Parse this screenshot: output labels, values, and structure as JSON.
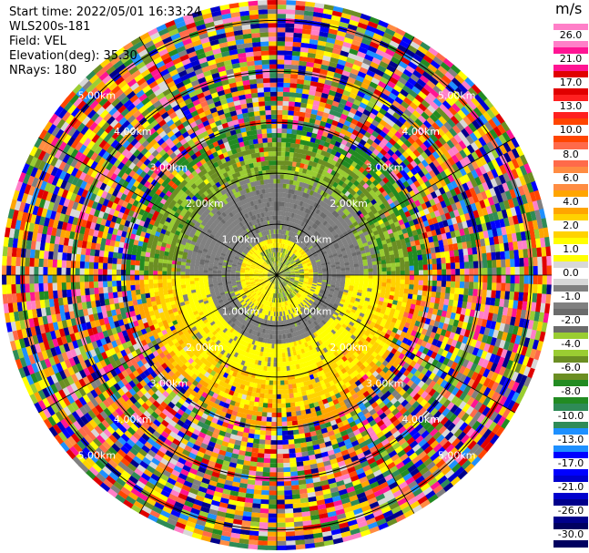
{
  "header": {
    "start_time": "Start time: 2022/05/01 16:33:24",
    "instrument": "WLS200s-181",
    "field": "Field: VEL",
    "elevation": "Elevation(deg): 35.30",
    "nrays": "NRays: 180"
  },
  "colorbar": {
    "title": "m/s",
    "ticks": [
      "26.0",
      "21.0",
      "17.0",
      "13.0",
      "10.0",
      "8.0",
      "6.0",
      "4.0",
      "2.0",
      "1.0",
      "0.0",
      "-1.0",
      "-2.0",
      "-4.0",
      "-6.0",
      "-8.0",
      "-10.0",
      "-13.0",
      "-17.0",
      "-21.0",
      "-26.0",
      "-30.0"
    ],
    "colors": [
      "#ff7fc8",
      "#ff1493",
      "#e00000",
      "#ff2020",
      "#ff4500",
      "#ff6a4a",
      "#ff8c42",
      "#ffa500",
      "#ffd200",
      "#ffff00",
      "#d8d8d8",
      "#808080",
      "#6b6b6b",
      "#9acd32",
      "#6b8e23",
      "#228b22",
      "#2e8b57",
      "#1e90ff",
      "#0000ff",
      "#0000cd",
      "#00008b",
      "#000060"
    ]
  },
  "chart_data": {
    "type": "heatmap",
    "projection": "polar-ppi",
    "field": "VEL",
    "units": "m/s",
    "range_rings_km": [
      1.0,
      2.0,
      3.0,
      4.0,
      5.0
    ],
    "ring_labels": [
      "1.00km",
      "2.00km",
      "3.00km",
      "4.00km",
      "5.00km"
    ],
    "max_range_km": 5.4,
    "nrays": 180,
    "azimuth_spokes_deg": [
      0,
      30,
      60,
      90,
      120,
      150,
      180,
      210,
      240,
      270,
      300,
      330
    ],
    "velocity_range": [
      -30.0,
      26.0
    ],
    "radial_pattern": [
      {
        "range_km": [
          0.0,
          0.55
        ],
        "dominant": "yellow/green mixed near origin, bright yellow sector to the south-west"
      },
      {
        "range_km": [
          0.55,
          1.05
        ],
        "dominant": "gray (0 to -1 m/s) with a yellow ring"
      },
      {
        "range_km": [
          1.05,
          2.0
        ],
        "dominant": "gray (0 to -1 m/s) in the north half, yellow (2 to 4 m/s) in the south half"
      },
      {
        "range_km": [
          2.0,
          2.6
        ],
        "dominant": "green (-4 to -6 m/s) north, yellow/orange (2 to 6 m/s) south"
      },
      {
        "range_km": [
          2.6,
          5.4
        ],
        "dominant": "noisy, all velocity classes"
      }
    ]
  }
}
